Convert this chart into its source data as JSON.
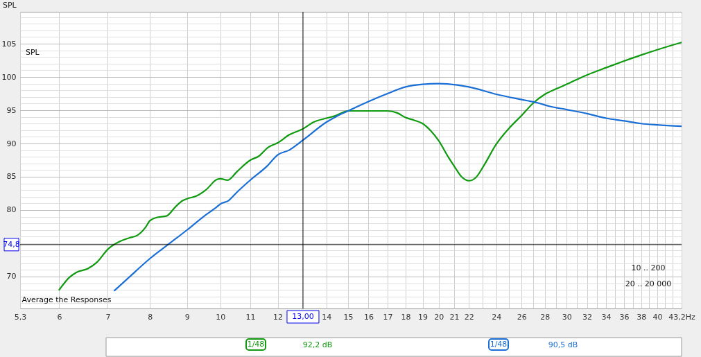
{
  "chart_data": {
    "type": "line",
    "ylabel": "SPL",
    "log": "x",
    "grid": true,
    "line_style": "solid",
    "xlim": [
      5.3,
      43.2
    ],
    "ylim": [
      65.2,
      109.8
    ],
    "xticks": [
      {
        "value": 5.3,
        "label": "5,3"
      },
      6,
      7,
      8,
      9,
      10,
      11,
      12,
      14,
      15,
      16,
      17,
      18,
      19,
      20,
      21,
      22,
      {
        "value": 23,
        "label": null
      },
      24,
      {
        "value": 25,
        "label": null
      },
      26,
      {
        "value": 27,
        "label": null
      },
      28,
      {
        "value": 29,
        "label": null
      },
      30,
      {
        "value": 31,
        "label": null
      },
      32,
      {
        "value": 33,
        "label": null
      },
      34,
      {
        "value": 35,
        "label": null
      },
      36,
      {
        "value": 37,
        "label": null
      },
      38,
      {
        "value": 39,
        "label": null
      },
      40,
      {
        "value": 41,
        "label": null
      },
      {
        "value": 42,
        "label": null
      },
      {
        "value": 43.2,
        "label": "43,2Hz"
      }
    ],
    "yticks": [
      {
        "value": 66,
        "label": null
      },
      {
        "value": 67,
        "label": null
      },
      {
        "value": 68,
        "label": null
      },
      {
        "value": 69,
        "label": null
      },
      70,
      {
        "value": 71,
        "label": null
      },
      {
        "value": 72,
        "label": null
      },
      {
        "value": 73,
        "label": null
      },
      {
        "value": 74,
        "label": null
      },
      {
        "value": 75,
        "label": null
      },
      {
        "value": 76,
        "label": null
      },
      {
        "value": 77,
        "label": null
      },
      {
        "value": 78,
        "label": null
      },
      {
        "value": 79,
        "label": null
      },
      80,
      {
        "value": 81,
        "label": null
      },
      {
        "value": 82,
        "label": null
      },
      {
        "value": 83,
        "label": null
      },
      {
        "value": 84,
        "label": null
      },
      85,
      {
        "value": 86,
        "label": null
      },
      {
        "value": 87,
        "label": null
      },
      {
        "value": 88,
        "label": null
      },
      {
        "value": 89,
        "label": null
      },
      90,
      {
        "value": 91,
        "label": null
      },
      {
        "value": 92,
        "label": null
      },
      {
        "value": 93,
        "label": null
      },
      {
        "value": 94,
        "label": null
      },
      95,
      {
        "value": 96,
        "label": null
      },
      {
        "value": 97,
        "label": null
      },
      {
        "value": 98,
        "label": null
      },
      {
        "value": 99,
        "label": null
      },
      100,
      {
        "value": 101,
        "label": null
      },
      {
        "value": 102,
        "label": null
      },
      {
        "value": 103,
        "label": null
      },
      {
        "value": 104,
        "label": null
      },
      105,
      {
        "value": 106,
        "label": null
      },
      {
        "value": 107,
        "label": null
      },
      {
        "value": 108,
        "label": null
      },
      {
        "value": 109,
        "label": null
      }
    ],
    "series": [
      {
        "color": "#109a10",
        "x": [
          6,
          6.2,
          6.33,
          6.57,
          6.77,
          7,
          7.28,
          7.49,
          7.69,
          7.89,
          8,
          8.19,
          8.43,
          8.68,
          8.87,
          9,
          9.27,
          9.55,
          9.9,
          10,
          10.24,
          10.55,
          11,
          11.3,
          11.63,
          12,
          12.44,
          13,
          13.44,
          14,
          14.35,
          15,
          16,
          17,
          17.53,
          18,
          18.5,
          19,
          19.5,
          20,
          20.6,
          21,
          21.5,
          22,
          22.5,
          23.05,
          24,
          25,
          26,
          27,
          28,
          29,
          30,
          32,
          34,
          36,
          38,
          40,
          43.2
        ],
        "values": [
          68.0,
          69.9,
          70.6,
          71.2,
          72.2,
          74.1,
          75.3,
          75.8,
          76.2,
          77.4,
          78.4,
          78.9,
          79.1,
          80.5,
          81.4,
          81.7,
          82.1,
          83.0,
          84.6,
          84.7,
          84.5,
          85.8,
          87.5,
          88.1,
          89.4,
          90.1,
          91.3,
          92.2,
          93.2,
          93.8,
          94.1,
          94.9,
          94.9,
          94.9,
          94.6,
          93.9,
          93.5,
          93.0,
          91.9,
          90.4,
          88.0,
          86.6,
          85.0,
          84.4,
          84.9,
          86.6,
          89.9,
          92.3,
          94.2,
          96.1,
          97.4,
          98.2,
          98.9,
          100.3,
          101.4,
          102.4,
          103.3,
          104.1,
          105.2
        ]
      },
      {
        "color": "#1a6fd6",
        "x": [
          7.15,
          7.49,
          8,
          8.52,
          9,
          9.48,
          9.9,
          10,
          10.26,
          10.55,
          11,
          11.6,
          12,
          12.44,
          13,
          14,
          14.47,
          15,
          16,
          17,
          18,
          19,
          20,
          21.2,
          22,
          24,
          26,
          27.4,
          28.4,
          30,
          32,
          34,
          36,
          38,
          40,
          43.2
        ],
        "values": [
          67.9,
          69.9,
          72.7,
          75.0,
          77.0,
          79.0,
          80.5,
          80.9,
          81.4,
          82.7,
          84.5,
          86.6,
          88.3,
          89.0,
          90.5,
          93.2,
          94.1,
          94.9,
          96.3,
          97.5,
          98.5,
          98.9,
          99.0,
          98.8,
          98.5,
          97.4,
          96.6,
          96.1,
          95.6,
          95.1,
          94.5,
          93.8,
          93.4,
          93.0,
          92.8,
          92.6
        ]
      }
    ],
    "ref_lines": [
      {
        "axis": "x",
        "value": 13,
        "label": "13,00",
        "color": "#000000"
      },
      {
        "axis": "y",
        "value": 74.8,
        "label": "74,8",
        "color": "#000000"
      }
    ],
    "annotations": [
      "SPL",
      "Average the Responses",
      "10 .. 200",
      "20 .. 20 000",
      "1/48",
      "92,2 dB",
      "1/48",
      "90,5 dB"
    ]
  }
}
